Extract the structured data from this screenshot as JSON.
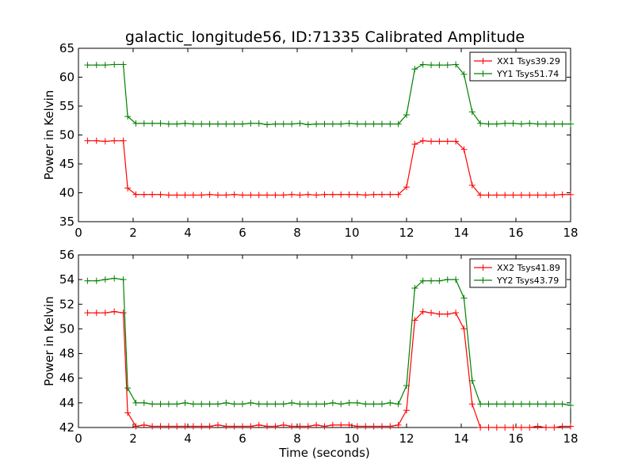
{
  "colors": {
    "xx": "#ff0000",
    "yy": "#008000",
    "axes": "#000000",
    "background": "#ffffff"
  },
  "chart_data": [
    {
      "type": "line",
      "title": "galactic_longitude56, ID:71335 Calibrated Amplitude",
      "xlabel": "",
      "ylabel": "Power in Kelvin",
      "xlim": [
        0,
        18
      ],
      "ylim": [
        35,
        65
      ],
      "xticks": [
        0,
        2,
        4,
        6,
        8,
        10,
        12,
        14,
        16,
        18
      ],
      "yticks": [
        35,
        40,
        45,
        50,
        55,
        60,
        65
      ],
      "legend_position": "top-right",
      "x": [
        0.33,
        0.66,
        0.98,
        1.31,
        1.64,
        1.8,
        2.1,
        2.4,
        2.7,
        3.0,
        3.3,
        3.6,
        3.9,
        4.2,
        4.5,
        4.8,
        5.1,
        5.4,
        5.7,
        6.0,
        6.3,
        6.6,
        6.9,
        7.2,
        7.5,
        7.8,
        8.1,
        8.4,
        8.7,
        9.0,
        9.3,
        9.6,
        9.9,
        10.2,
        10.5,
        10.8,
        11.1,
        11.4,
        11.7,
        12.0,
        12.3,
        12.6,
        12.9,
        13.2,
        13.5,
        13.8,
        14.1,
        14.4,
        14.7,
        15.0,
        15.3,
        15.6,
        15.9,
        16.2,
        16.5,
        16.8,
        17.1,
        17.4,
        17.7,
        18.0
      ],
      "series": [
        {
          "name": "XX1 Tsys39.29",
          "color": "#ff0000",
          "values": [
            49.0,
            49.0,
            48.9,
            49.0,
            49.0,
            40.8,
            39.7,
            39.7,
            39.7,
            39.7,
            39.6,
            39.6,
            39.6,
            39.6,
            39.6,
            39.7,
            39.6,
            39.6,
            39.7,
            39.6,
            39.6,
            39.6,
            39.6,
            39.6,
            39.6,
            39.7,
            39.6,
            39.7,
            39.6,
            39.7,
            39.7,
            39.7,
            39.7,
            39.7,
            39.6,
            39.7,
            39.7,
            39.7,
            39.7,
            41.0,
            48.4,
            49.0,
            48.9,
            48.9,
            48.9,
            48.9,
            47.5,
            41.3,
            39.6,
            39.6,
            39.6,
            39.6,
            39.6,
            39.6,
            39.6,
            39.6,
            39.6,
            39.6,
            39.7,
            39.7
          ]
        },
        {
          "name": "YY1 Tsys51.74",
          "color": "#008000",
          "values": [
            62.1,
            62.1,
            62.1,
            62.2,
            62.2,
            53.2,
            52.0,
            52.0,
            52.0,
            52.0,
            51.9,
            51.9,
            52.0,
            51.9,
            51.9,
            51.9,
            51.9,
            51.9,
            51.9,
            51.9,
            52.0,
            52.0,
            51.8,
            51.9,
            51.9,
            51.9,
            52.0,
            51.8,
            51.9,
            51.9,
            51.9,
            51.9,
            52.0,
            51.9,
            51.9,
            51.9,
            51.9,
            51.9,
            51.9,
            53.5,
            61.4,
            62.2,
            62.1,
            62.1,
            62.1,
            62.2,
            60.5,
            54.0,
            52.0,
            51.9,
            51.9,
            52.0,
            52.0,
            51.9,
            52.0,
            51.9,
            51.9,
            51.9,
            51.9,
            51.9
          ]
        }
      ]
    },
    {
      "type": "line",
      "title": "",
      "xlabel": "Time (seconds)",
      "ylabel": "Power in Kelvin",
      "xlim": [
        0,
        18
      ],
      "ylim": [
        42,
        56
      ],
      "xticks": [
        0,
        2,
        4,
        6,
        8,
        10,
        12,
        14,
        16,
        18
      ],
      "yticks": [
        42,
        44,
        46,
        48,
        50,
        52,
        54,
        56
      ],
      "legend_position": "top-right",
      "x": [
        0.33,
        0.66,
        0.98,
        1.31,
        1.64,
        1.8,
        2.1,
        2.4,
        2.7,
        3.0,
        3.3,
        3.6,
        3.9,
        4.2,
        4.5,
        4.8,
        5.1,
        5.4,
        5.7,
        6.0,
        6.3,
        6.6,
        6.9,
        7.2,
        7.5,
        7.8,
        8.1,
        8.4,
        8.7,
        9.0,
        9.3,
        9.6,
        9.9,
        10.2,
        10.5,
        10.8,
        11.1,
        11.4,
        11.7,
        12.0,
        12.3,
        12.6,
        12.9,
        13.2,
        13.5,
        13.8,
        14.1,
        14.4,
        14.7,
        15.0,
        15.3,
        15.6,
        15.9,
        16.2,
        16.5,
        16.8,
        17.1,
        17.4,
        17.7,
        18.0
      ],
      "series": [
        {
          "name": "XX2 Tsys41.89",
          "color": "#ff0000",
          "values": [
            51.3,
            51.3,
            51.3,
            51.4,
            51.3,
            43.2,
            42.1,
            42.2,
            42.1,
            42.1,
            42.1,
            42.1,
            42.1,
            42.1,
            42.1,
            42.1,
            42.2,
            42.1,
            42.1,
            42.1,
            42.1,
            42.2,
            42.1,
            42.1,
            42.2,
            42.1,
            42.1,
            42.1,
            42.2,
            42.1,
            42.2,
            42.2,
            42.2,
            42.1,
            42.1,
            42.1,
            42.1,
            42.1,
            42.2,
            43.4,
            50.7,
            51.4,
            51.3,
            51.2,
            51.2,
            51.3,
            50.0,
            43.9,
            42.0,
            42.0,
            42.0,
            42.0,
            42.0,
            42.0,
            42.0,
            42.1,
            42.0,
            42.0,
            42.1,
            42.1
          ]
        },
        {
          "name": "YY2 Tsys43.79",
          "color": "#008000",
          "values": [
            53.9,
            53.9,
            54.0,
            54.1,
            54.0,
            45.2,
            44.0,
            44.0,
            43.9,
            43.9,
            43.9,
            43.9,
            44.0,
            43.9,
            43.9,
            43.9,
            43.9,
            44.0,
            43.9,
            43.9,
            44.0,
            43.9,
            43.9,
            43.9,
            43.9,
            44.0,
            43.9,
            43.9,
            43.9,
            43.9,
            44.0,
            43.9,
            44.0,
            44.0,
            43.9,
            43.9,
            43.9,
            44.0,
            43.9,
            45.4,
            53.3,
            53.9,
            53.9,
            53.9,
            54.0,
            54.0,
            52.5,
            45.8,
            43.9,
            43.9,
            43.9,
            43.9,
            43.9,
            43.9,
            43.9,
            43.9,
            43.9,
            43.9,
            43.9,
            43.8
          ]
        }
      ]
    }
  ]
}
